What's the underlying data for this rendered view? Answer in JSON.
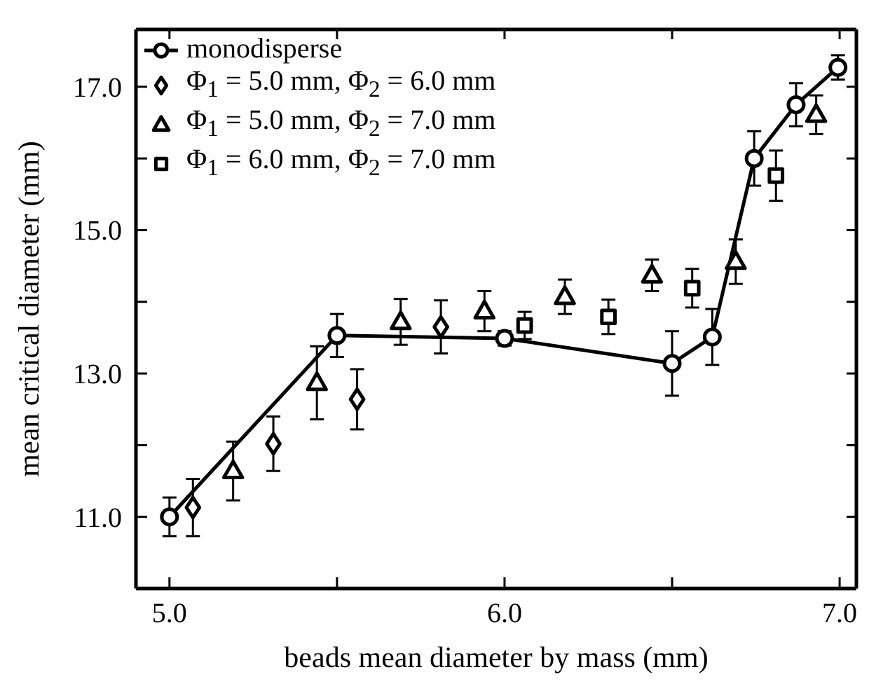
{
  "chart_data": {
    "type": "scatter",
    "xlabel": "beads mean diameter by mass (mm)",
    "ylabel": "mean critical diameter (mm)",
    "xlim": [
      4.9,
      7.05
    ],
    "ylim": [
      10.0,
      17.8
    ],
    "xticks": [
      {
        "value": 5,
        "label": "5.0"
      },
      {
        "value": 5.5,
        "label": null
      },
      {
        "value": 6,
        "label": "6.0"
      },
      {
        "value": 6.5,
        "label": null
      },
      {
        "value": 7,
        "label": "7.0"
      }
    ],
    "yticks": [
      {
        "value": 11,
        "label": "11.0"
      },
      {
        "value": 12,
        "label": null
      },
      {
        "value": 13,
        "label": "13.0"
      },
      {
        "value": 14,
        "label": null
      },
      {
        "value": 15,
        "label": "15.0"
      },
      {
        "value": 16,
        "label": null
      },
      {
        "value": 17,
        "label": "17.0"
      }
    ],
    "grid": false,
    "legend": "top left",
    "line_style": "solid",
    "series": [
      {
        "name": "monodisperse",
        "type": "line",
        "marker": "circle",
        "color": "#000000",
        "x": [
          5.0,
          5.5,
          6.0,
          6.5,
          6.62,
          6.745,
          6.87,
          6.995
        ],
        "values": [
          11.0,
          13.53,
          13.49,
          13.14,
          13.51,
          16.0,
          16.75,
          17.27
        ],
        "errors": [
          0.27,
          0.3,
          0.1,
          0.45,
          0.39,
          0.38,
          0.3,
          0.17
        ]
      },
      {
        "name": "Φ$_{1}$ = 5.0 mm, Φ$_{2}$ = 6.0 mm",
        "marker": "diamond",
        "color": "#000000",
        "x": [
          5.07,
          5.31,
          5.56,
          5.81
        ],
        "values": [
          11.13,
          12.02,
          12.64,
          13.65
        ],
        "errors": [
          0.4,
          0.38,
          0.42,
          0.37
        ]
      },
      {
        "name": "Φ$_{1}$ = 5.0 mm, Φ$_{2}$ = 7.0 mm",
        "marker": "triangle",
        "color": "#000000",
        "x": [
          5.19,
          5.44,
          5.69,
          5.94,
          6.18,
          6.44,
          6.69,
          6.93
        ],
        "values": [
          11.64,
          12.87,
          13.72,
          13.87,
          14.07,
          14.37,
          14.56,
          16.61
        ],
        "errors": [
          0.41,
          0.51,
          0.32,
          0.28,
          0.24,
          0.22,
          0.31,
          0.27
        ]
      },
      {
        "name": "Φ$_{1}$ = 6.0 mm, Φ$_{2}$ = 7.0 mm",
        "marker": "square",
        "color": "#000000",
        "x": [
          6.06,
          6.31,
          6.56,
          6.81
        ],
        "values": [
          13.67,
          13.79,
          14.19,
          15.76
        ],
        "errors": [
          0.19,
          0.24,
          0.27,
          0.35
        ]
      }
    ]
  }
}
